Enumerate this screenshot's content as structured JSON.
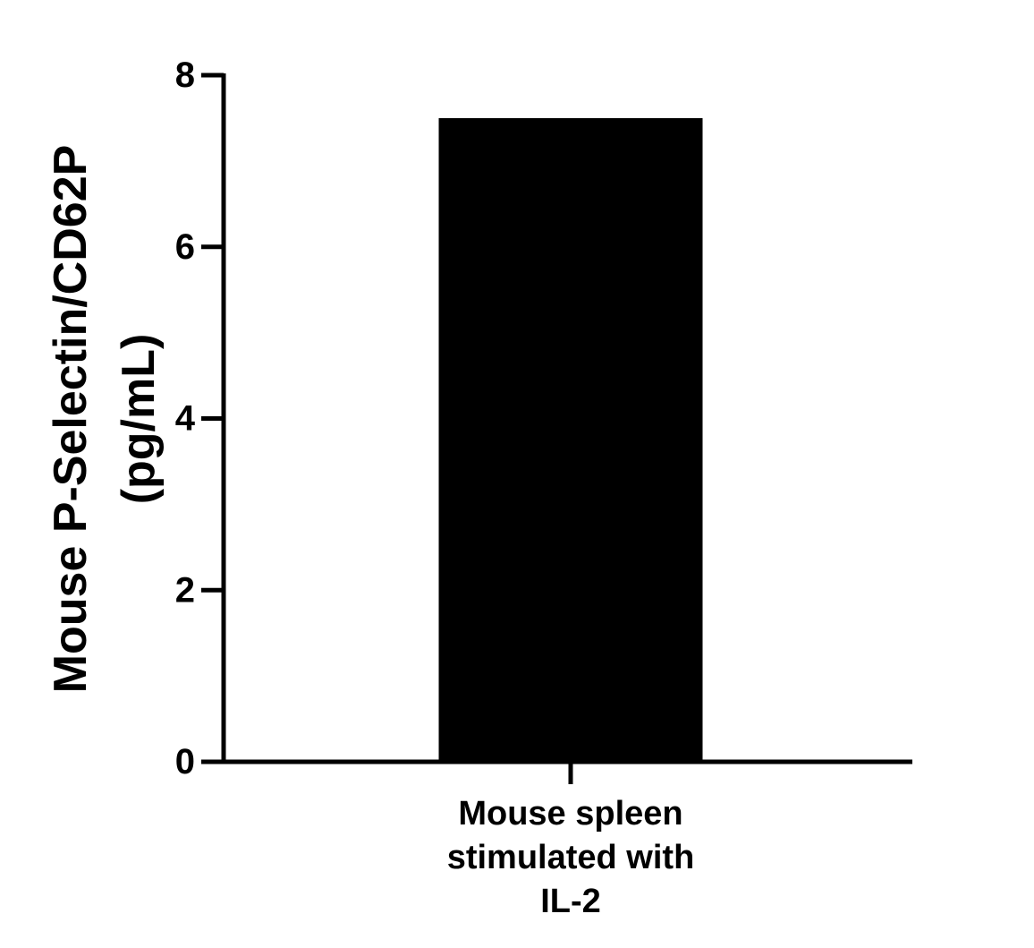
{
  "chart_data": {
    "type": "bar",
    "categories": [
      "Mouse spleen stimulated with IL-2"
    ],
    "category_label_lines": [
      [
        "Mouse spleen",
        "stimulated with",
        "IL-2"
      ]
    ],
    "values": [
      7.5
    ],
    "ylabel_lines": [
      "Mouse P-Selectin/CD62P",
      "(pg/mL)"
    ],
    "ylim": [
      0,
      8
    ],
    "yticks": [
      "0",
      "2",
      "4",
      "6",
      "8"
    ],
    "bar_color": "#000000",
    "grid": false
  }
}
